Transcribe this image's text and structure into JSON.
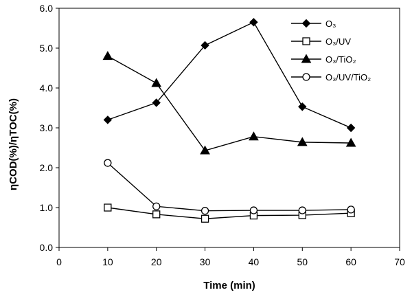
{
  "chart_data": {
    "type": "line",
    "title": "",
    "xlabel": "Time (min)",
    "ylabel": "ηCOD(%)/ηTOC(%)",
    "xlim": [
      0,
      70
    ],
    "ylim": [
      0,
      6
    ],
    "x_ticks": [
      0,
      10,
      20,
      30,
      40,
      50,
      60,
      70
    ],
    "x_tick_labels": [
      "0",
      "10",
      "20",
      "30",
      "40",
      "50",
      "60",
      "70"
    ],
    "y_ticks": [
      0,
      1,
      2,
      3,
      4,
      5,
      6
    ],
    "y_tick_labels": [
      "0.0",
      "1.0",
      "2.0",
      "3.0",
      "4.0",
      "5.0",
      "6.0"
    ],
    "grid": false,
    "legend_position": "top-right",
    "x": [
      10,
      20,
      30,
      40,
      50,
      60
    ],
    "series": [
      {
        "name": "O₃",
        "marker": "filled-diamond",
        "values": [
          3.2,
          3.63,
          5.07,
          5.65,
          3.53,
          3.0
        ]
      },
      {
        "name": "O₃/UV",
        "marker": "open-square",
        "values": [
          1.0,
          0.83,
          0.72,
          0.8,
          0.81,
          0.86
        ]
      },
      {
        "name": "O₃/TiO₂",
        "marker": "filled-triangle",
        "values": [
          4.8,
          4.12,
          2.43,
          2.78,
          2.64,
          2.62
        ]
      },
      {
        "name": "O₃/UV/TiO₂",
        "marker": "open-circle",
        "values": [
          2.12,
          1.03,
          0.92,
          0.93,
          0.93,
          0.95
        ]
      }
    ],
    "colors": {
      "line": "#000000",
      "background": "#ffffff"
    }
  }
}
